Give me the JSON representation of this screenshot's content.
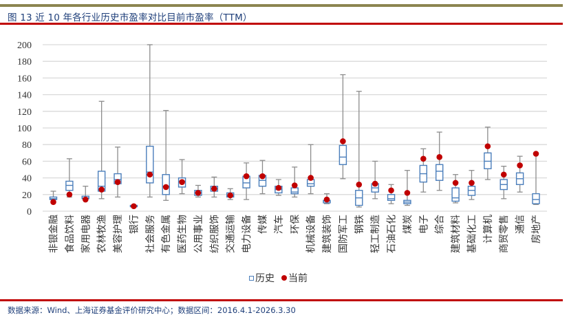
{
  "header": {
    "title": "图 13  近 10 年各行业历史市盈率对比目前市盈率（TTM）"
  },
  "footer": {
    "source": "数据来源：Wind、上海证券基金评价研究中心；数据区间：2016.4.1-2026.3.30"
  },
  "legend": {
    "history_label": "历史",
    "current_label": "当前"
  },
  "colors": {
    "box_stroke": "#4a7ebb",
    "whisker": "#8c8c8c",
    "current_dot": "#c00000",
    "title_text": "#1f3f7a",
    "top_rule": "#8c8550",
    "red_rule": "#c00000"
  },
  "chart_data": {
    "type": "box",
    "title": "近 10 年各行业历史市盈率对比目前市盈率（TTM）",
    "xlabel": "",
    "ylabel": "",
    "ylim": [
      0,
      200
    ],
    "yticks": [
      0,
      20,
      40,
      60,
      80,
      100,
      120,
      140,
      160,
      180,
      200
    ],
    "grid": true,
    "legend_position": "bottom",
    "series": [
      {
        "name": "历史",
        "kind": "box",
        "fields": [
          "min",
          "q1",
          "median",
          "q3",
          "max"
        ]
      },
      {
        "name": "当前",
        "kind": "scatter"
      }
    ],
    "categories": [
      "非银金融",
      "食品饮料",
      "家用电器",
      "农林牧渔",
      "美容护理",
      "银行",
      "社会服务",
      "有色金属",
      "医药生物",
      "公用事业",
      "纺织服饰",
      "交通运输",
      "电力设备",
      "传媒",
      "汽车",
      "环保",
      "机械设备",
      "建筑装饰",
      "国防军工",
      "钢铁",
      "轻工制造",
      "石油石化",
      "煤炭",
      "电子",
      "综合",
      "建筑材料",
      "基础化工",
      "计算机",
      "商贸零售",
      "通信",
      "房地产"
    ],
    "boxes": [
      {
        "min": 14,
        "q1": 14,
        "median": 15,
        "q3": 17,
        "max": 24
      },
      {
        "min": 17,
        "q1": 25,
        "median": 31,
        "q3": 36,
        "max": 63
      },
      {
        "min": 14,
        "q1": 15,
        "median": 16,
        "q3": 18,
        "max": 30
      },
      {
        "min": 15,
        "q1": 24,
        "median": 30,
        "q3": 48,
        "max": 132
      },
      {
        "min": 17,
        "q1": 33,
        "median": 38,
        "q3": 45,
        "max": 77
      },
      {
        "min": 6,
        "q1": 6,
        "median": 6.5,
        "q3": 7,
        "max": 7
      },
      {
        "min": 17,
        "q1": 34,
        "median": 47,
        "q3": 78,
        "max": 200
      },
      {
        "min": 13,
        "q1": 20,
        "median": 30,
        "q3": 44,
        "max": 121
      },
      {
        "min": 21,
        "q1": 29,
        "median": 36,
        "q3": 40,
        "max": 62
      },
      {
        "min": 17,
        "q1": 19,
        "median": 22,
        "q3": 25,
        "max": 31
      },
      {
        "min": 17,
        "q1": 24,
        "median": 27,
        "q3": 30,
        "max": 41
      },
      {
        "min": 14,
        "q1": 17,
        "median": 18,
        "q3": 22,
        "max": 27
      },
      {
        "min": 14,
        "q1": 28,
        "median": 34,
        "q3": 42,
        "max": 58
      },
      {
        "min": 21,
        "q1": 30,
        "median": 37,
        "q3": 43,
        "max": 61
      },
      {
        "min": 19,
        "q1": 22,
        "median": 26,
        "q3": 30,
        "max": 38
      },
      {
        "min": 17,
        "q1": 21,
        "median": 23,
        "q3": 28,
        "max": 53
      },
      {
        "min": 21,
        "q1": 30,
        "median": 33,
        "q3": 38,
        "max": 80
      },
      {
        "min": 9,
        "q1": 10,
        "median": 12,
        "q3": 13,
        "max": 21
      },
      {
        "min": 39,
        "q1": 56,
        "median": 65,
        "q3": 79,
        "max": 164
      },
      {
        "min": 5,
        "q1": 7,
        "median": 16,
        "q3": 25,
        "max": 144
      },
      {
        "min": 15,
        "q1": 23,
        "median": 28,
        "q3": 33,
        "max": 60
      },
      {
        "min": 9,
        "q1": 13,
        "median": 15,
        "q3": 20,
        "max": 32
      },
      {
        "min": 7,
        "q1": 9,
        "median": 11,
        "q3": 13,
        "max": 49
      },
      {
        "min": 23,
        "q1": 35,
        "median": 45,
        "q3": 55,
        "max": 75
      },
      {
        "min": 25,
        "q1": 37,
        "median": 48,
        "q3": 56,
        "max": 95
      },
      {
        "min": 10,
        "q1": 12,
        "median": 16,
        "q3": 28,
        "max": 44
      },
      {
        "min": 14,
        "q1": 19,
        "median": 25,
        "q3": 30,
        "max": 49
      },
      {
        "min": 38,
        "q1": 51,
        "median": 60,
        "q3": 70,
        "max": 101
      },
      {
        "min": 15,
        "q1": 26,
        "median": 32,
        "q3": 38,
        "max": 54
      },
      {
        "min": 23,
        "q1": 32,
        "median": 39,
        "q3": 46,
        "max": 66
      },
      {
        "min": 8,
        "q1": 9,
        "median": 14,
        "q3": 21,
        "max": 68
      }
    ],
    "current": [
      11,
      20,
      14,
      26,
      35,
      6,
      44,
      29,
      35,
      22,
      27,
      19,
      42,
      42,
      28,
      31,
      40,
      14,
      84,
      32,
      33,
      25,
      22,
      63,
      65,
      34,
      34,
      78,
      44,
      55,
      69
    ]
  }
}
